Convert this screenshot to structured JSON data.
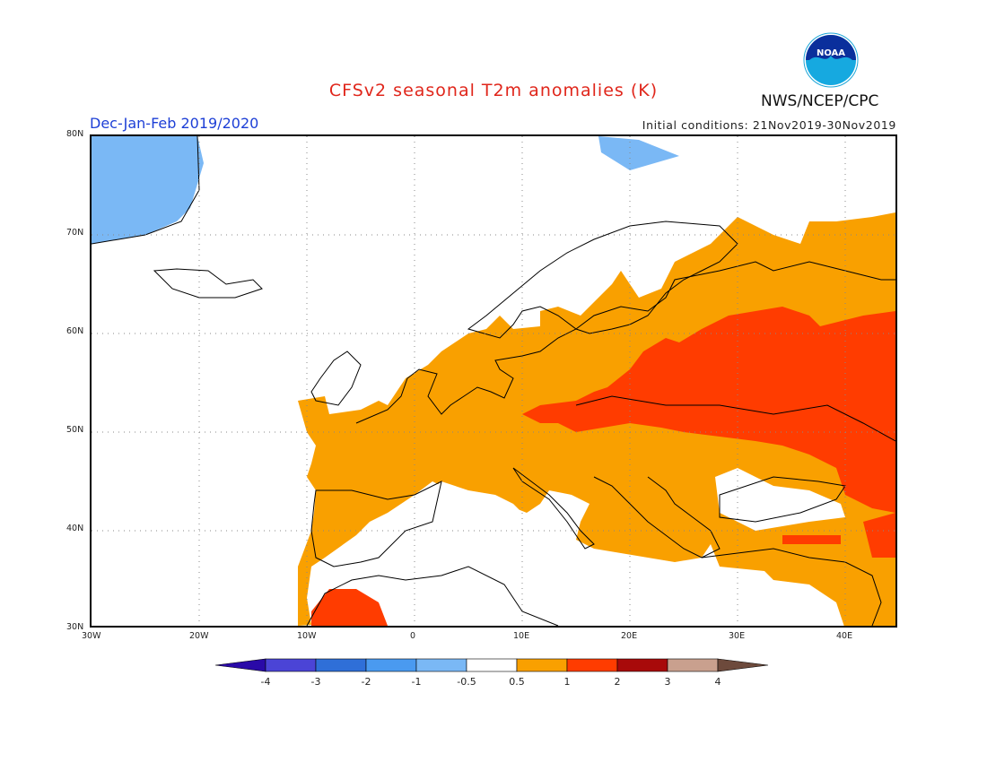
{
  "header": {
    "title": "CFSv2 seasonal T2m anomalies (K)",
    "subtitle": "Dec-Jan-Feb 2019/2020",
    "initial_conditions": "Initial conditions: 21Nov2019-30Nov2019",
    "agency": "NWS/NCEP/CPC",
    "logo_text": "NOAA"
  },
  "map": {
    "lat_ticks": [
      "80N",
      "70N",
      "60N",
      "50N",
      "40N",
      "30N"
    ],
    "lon_ticks": [
      "30W",
      "20W",
      "10W",
      "0",
      "10E",
      "20E",
      "30E",
      "40E"
    ],
    "extent": {
      "lon": [
        -30,
        45
      ],
      "lat": [
        30,
        80
      ]
    },
    "grid": true,
    "regions": [
      {
        "name": "Greenland coast",
        "anomaly": "-1 to -0.5"
      },
      {
        "name": "Svalbard",
        "anomaly": "-1 to -0.5"
      },
      {
        "name": "Western Europe",
        "anomaly": "0.5 to 1"
      },
      {
        "name": "Eastern Europe / Western Russia",
        "anomaly": "1 to 2"
      },
      {
        "name": "Mediterranean",
        "anomaly": "-0.5 to 0.5"
      }
    ]
  },
  "colorbar": {
    "labels": [
      "-4",
      "-3",
      "-2",
      "-1",
      "-0.5",
      "0.5",
      "1",
      "2",
      "3",
      "4"
    ],
    "colors": [
      "#2a0aa8",
      "#4b44d6",
      "#2f6fd8",
      "#4a9af0",
      "#7ab8f5",
      "#ffffff",
      "#f9a000",
      "#ff3c00",
      "#a80a0a",
      "#c9a08e",
      "#6d4a3c"
    ]
  }
}
